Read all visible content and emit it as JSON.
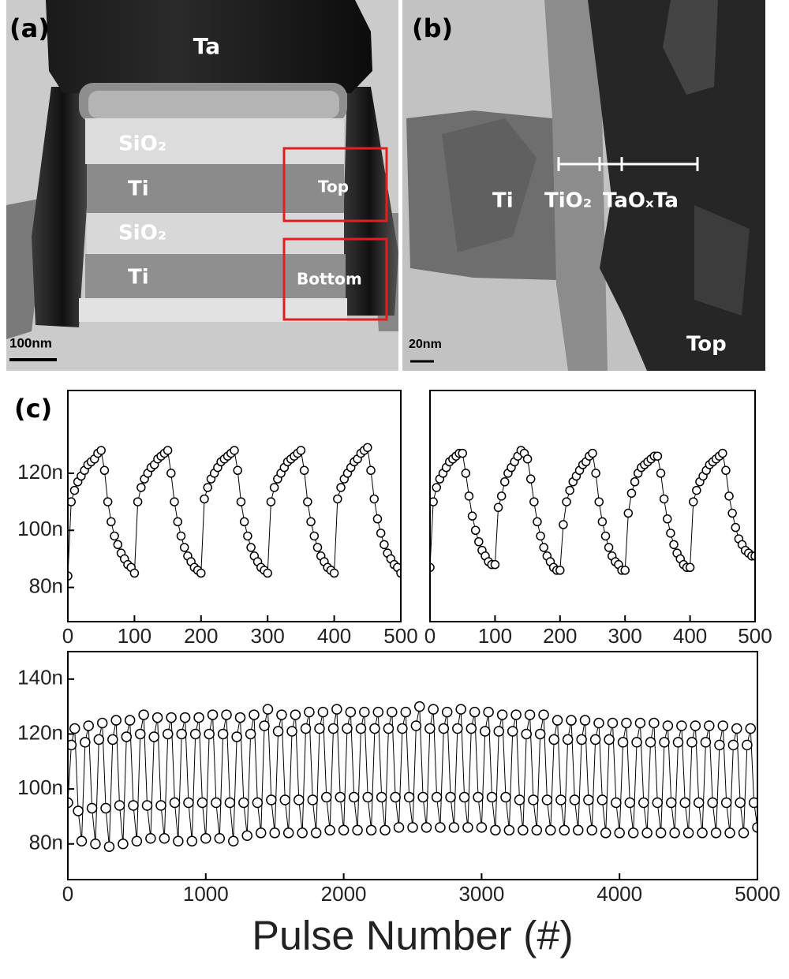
{
  "panels": {
    "a": {
      "label": "(a)",
      "ta": "Ta",
      "sio2_upper": "SiO₂",
      "ti_upper": "Ti",
      "sio2_lower": "SiO₂",
      "ti_lower": "Ti",
      "top": "Top",
      "bottom": "Bottom",
      "scale": "100nm"
    },
    "b": {
      "label": "(b)",
      "ti": "Ti",
      "tio2": "TiO₂",
      "taox": "TaOₓ",
      "ta": "Ta",
      "top": "Top",
      "scale": "20nm"
    }
  },
  "panel_c_label": "(c)",
  "xlabel": "Pulse Number (#)",
  "chart_data": [
    {
      "type": "scatter",
      "color": "#000000",
      "x": [
        0,
        5,
        10,
        15,
        20,
        25,
        30,
        35,
        40,
        45,
        50,
        55,
        60,
        65,
        70,
        75,
        80,
        85,
        90,
        95,
        100,
        105,
        110,
        115,
        120,
        125,
        130,
        135,
        140,
        145,
        150,
        155,
        160,
        165,
        170,
        175,
        180,
        185,
        190,
        195,
        200,
        205,
        210,
        215,
        220,
        225,
        230,
        235,
        240,
        245,
        250,
        255,
        260,
        265,
        270,
        275,
        280,
        285,
        290,
        295,
        300,
        305,
        310,
        315,
        320,
        325,
        330,
        335,
        340,
        345,
        350,
        355,
        360,
        365,
        370,
        375,
        380,
        385,
        390,
        395,
        400,
        405,
        410,
        415,
        420,
        425,
        430,
        435,
        440,
        445,
        450,
        455,
        460,
        465,
        470,
        475,
        480,
        485,
        490,
        495,
        500
      ],
      "values": [
        84,
        110,
        114,
        117,
        119,
        121,
        123,
        124,
        125,
        127,
        128,
        121,
        110,
        103,
        98,
        95,
        92,
        90,
        88,
        87,
        85,
        110,
        115,
        118,
        120,
        122,
        123,
        125,
        126,
        127,
        128,
        120,
        110,
        103,
        98,
        94,
        91,
        89,
        87,
        86,
        85,
        111,
        115,
        118,
        120,
        122,
        124,
        125,
        126,
        127,
        128,
        121,
        110,
        103,
        98,
        94,
        91,
        89,
        87,
        86,
        85,
        110,
        115,
        118,
        120,
        122,
        124,
        125,
        126,
        127,
        128,
        121,
        110,
        103,
        98,
        94,
        91,
        89,
        87,
        86,
        85,
        111,
        115,
        118,
        120,
        122,
        124,
        125,
        127,
        128,
        129,
        121,
        111,
        104,
        99,
        95,
        92,
        90,
        88,
        87,
        85
      ],
      "xlim": [
        0,
        500
      ],
      "xticks": [
        0,
        100,
        200,
        300,
        400,
        500
      ],
      "ylim": [
        68,
        149
      ],
      "yticks": [
        {
          "value": 80,
          "label": "80n"
        },
        {
          "value": 100,
          "label": "100n"
        },
        {
          "value": 120,
          "label": "120n"
        }
      ]
    },
    {
      "type": "scatter",
      "color": "#000000",
      "x": [
        0,
        5,
        10,
        15,
        20,
        25,
        30,
        35,
        40,
        45,
        50,
        55,
        60,
        65,
        70,
        75,
        80,
        85,
        90,
        95,
        100,
        105,
        110,
        115,
        120,
        125,
        130,
        135,
        140,
        145,
        150,
        155,
        160,
        165,
        170,
        175,
        180,
        185,
        190,
        195,
        200,
        205,
        210,
        215,
        220,
        225,
        230,
        235,
        240,
        245,
        250,
        255,
        260,
        265,
        270,
        275,
        280,
        285,
        290,
        295,
        300,
        305,
        310,
        315,
        320,
        325,
        330,
        335,
        340,
        345,
        350,
        355,
        360,
        365,
        370,
        375,
        380,
        385,
        390,
        395,
        400,
        405,
        410,
        415,
        420,
        425,
        430,
        435,
        440,
        445,
        450,
        455,
        460,
        465,
        470,
        475,
        480,
        485,
        490,
        495,
        500
      ],
      "values": [
        87,
        110,
        115,
        118,
        120,
        122,
        124,
        125,
        126,
        127,
        127,
        120,
        112,
        105,
        100,
        96,
        93,
        91,
        89,
        88,
        88,
        108,
        112,
        117,
        120,
        122,
        124,
        126,
        128,
        127,
        125,
        118,
        110,
        103,
        98,
        94,
        91,
        89,
        87,
        86,
        86,
        102,
        110,
        114,
        117,
        119,
        121,
        123,
        124,
        126,
        127,
        120,
        110,
        103,
        98,
        94,
        91,
        89,
        88,
        86,
        86,
        106,
        113,
        117,
        120,
        122,
        123,
        124,
        125,
        126,
        126,
        120,
        111,
        104,
        99,
        95,
        92,
        90,
        88,
        87,
        87,
        110,
        114,
        117,
        119,
        121,
        123,
        124,
        125,
        126,
        127,
        121,
        112,
        106,
        101,
        97,
        95,
        93,
        92,
        91,
        91
      ],
      "xlim": [
        0,
        500
      ],
      "xticks": [
        0,
        100,
        200,
        300,
        400,
        500
      ],
      "ylim": [
        68,
        149
      ],
      "yticks": []
    },
    {
      "type": "scatter",
      "color": "#000000",
      "x": [
        0,
        25,
        50,
        75,
        100,
        125,
        150,
        175,
        200,
        225,
        250,
        275,
        300,
        325,
        350,
        375,
        400,
        425,
        450,
        475,
        500,
        525,
        550,
        575,
        600,
        625,
        650,
        675,
        700,
        725,
        750,
        775,
        800,
        825,
        850,
        875,
        900,
        925,
        950,
        975,
        1000,
        1025,
        1050,
        1075,
        1100,
        1125,
        1150,
        1175,
        1200,
        1225,
        1250,
        1275,
        1300,
        1325,
        1350,
        1375,
        1400,
        1425,
        1450,
        1475,
        1500,
        1525,
        1550,
        1575,
        1600,
        1625,
        1650,
        1675,
        1700,
        1725,
        1750,
        1775,
        1800,
        1825,
        1850,
        1875,
        1900,
        1925,
        1950,
        1975,
        2000,
        2025,
        2050,
        2075,
        2100,
        2125,
        2150,
        2175,
        2200,
        2225,
        2250,
        2275,
        2300,
        2325,
        2350,
        2375,
        2400,
        2425,
        2450,
        2475,
        2500,
        2525,
        2550,
        2575,
        2600,
        2625,
        2650,
        2675,
        2700,
        2725,
        2750,
        2775,
        2800,
        2825,
        2850,
        2875,
        2900,
        2925,
        2950,
        2975,
        3000,
        3025,
        3050,
        3075,
        3100,
        3125,
        3150,
        3175,
        3200,
        3225,
        3250,
        3275,
        3300,
        3325,
        3350,
        3375,
        3400,
        3425,
        3450,
        3475,
        3500,
        3525,
        3550,
        3575,
        3600,
        3625,
        3650,
        3675,
        3700,
        3725,
        3750,
        3775,
        3800,
        3825,
        3850,
        3875,
        3900,
        3925,
        3950,
        3975,
        4000,
        4025,
        4050,
        4075,
        4100,
        4125,
        4150,
        4175,
        4200,
        4225,
        4250,
        4275,
        4300,
        4325,
        4350,
        4375,
        4400,
        4425,
        4450,
        4475,
        4500,
        4525,
        4550,
        4575,
        4600,
        4625,
        4650,
        4675,
        4700,
        4725,
        4750,
        4775,
        4800,
        4825,
        4850,
        4875,
        4900,
        4925,
        4950,
        4975,
        5000
      ],
      "values": [
        95,
        116,
        122,
        92,
        81,
        117,
        123,
        93,
        80,
        118,
        124,
        93,
        79,
        118,
        125,
        94,
        80,
        119,
        125,
        94,
        81,
        120,
        127,
        94,
        82,
        119,
        126,
        94,
        82,
        120,
        126,
        95,
        81,
        120,
        126,
        95,
        81,
        120,
        126,
        95,
        82,
        120,
        127,
        95,
        82,
        120,
        127,
        95,
        81,
        119,
        126,
        95,
        83,
        120,
        127,
        95,
        84,
        123,
        129,
        96,
        84,
        121,
        127,
        96,
        84,
        121,
        127,
        96,
        84,
        122,
        128,
        96,
        84,
        122,
        128,
        97,
        85,
        122,
        129,
        97,
        85,
        122,
        128,
        97,
        85,
        122,
        128,
        97,
        85,
        122,
        128,
        97,
        85,
        122,
        128,
        97,
        86,
        122,
        128,
        97,
        86,
        123,
        130,
        97,
        86,
        122,
        129,
        97,
        86,
        122,
        128,
        97,
        86,
        122,
        129,
        97,
        86,
        122,
        128,
        97,
        86,
        121,
        128,
        97,
        85,
        121,
        127,
        97,
        85,
        121,
        127,
        96,
        85,
        120,
        127,
        96,
        85,
        120,
        127,
        96,
        85,
        118,
        125,
        96,
        85,
        118,
        125,
        96,
        85,
        118,
        125,
        96,
        85,
        118,
        124,
        96,
        84,
        118,
        124,
        95,
        84,
        117,
        124,
        95,
        84,
        117,
        124,
        95,
        84,
        117,
        124,
        95,
        84,
        117,
        123,
        95,
        84,
        117,
        123,
        95,
        84,
        117,
        123,
        95,
        84,
        117,
        123,
        95,
        84,
        116,
        123,
        95,
        84,
        116,
        122,
        95,
        84,
        116,
        122,
        95,
        86
      ],
      "xlim": [
        0,
        5000
      ],
      "xticks": [
        0,
        1000,
        2000,
        3000,
        4000,
        5000
      ],
      "ylim": [
        67,
        150
      ],
      "yticks": [
        {
          "value": 80,
          "label": "80n"
        },
        {
          "value": 100,
          "label": "100n"
        },
        {
          "value": 120,
          "label": "120n"
        },
        {
          "value": 140,
          "label": "140n"
        }
      ]
    }
  ]
}
